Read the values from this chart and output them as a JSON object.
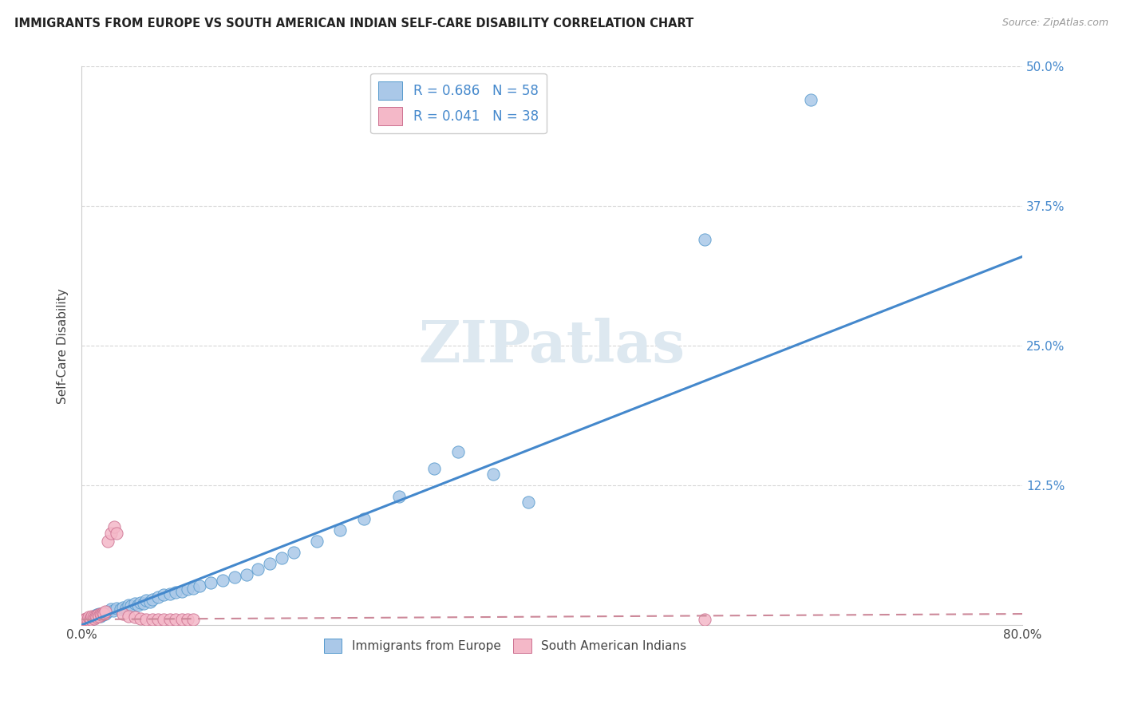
{
  "title": "IMMIGRANTS FROM EUROPE VS SOUTH AMERICAN INDIAN SELF-CARE DISABILITY CORRELATION CHART",
  "source": "Source: ZipAtlas.com",
  "ylabel_label": "Self-Care Disability",
  "legend_r1": "R = 0.686",
  "legend_n1": "N = 58",
  "legend_r2": "R = 0.041",
  "legend_n2": "N = 38",
  "label_blue": "Immigrants from Europe",
  "label_pink": "South American Indians",
  "blue_color": "#aac8e8",
  "blue_edge": "#5599cc",
  "pink_color": "#f4b8c8",
  "pink_edge": "#cc7090",
  "line_blue": "#4488cc",
  "line_pink": "#cc8899",
  "watermark_color": "#dde8f0",
  "blue_x": [
    0.002,
    0.004,
    0.005,
    0.007,
    0.008,
    0.009,
    0.01,
    0.011,
    0.012,
    0.013,
    0.015,
    0.016,
    0.017,
    0.018,
    0.019,
    0.02,
    0.022,
    0.025,
    0.027,
    0.03,
    0.033,
    0.035,
    0.038,
    0.04,
    0.042,
    0.045,
    0.048,
    0.05,
    0.053,
    0.055,
    0.058,
    0.06,
    0.065,
    0.07,
    0.075,
    0.08,
    0.085,
    0.09,
    0.095,
    0.1,
    0.11,
    0.12,
    0.13,
    0.14,
    0.15,
    0.16,
    0.17,
    0.18,
    0.2,
    0.22,
    0.24,
    0.27,
    0.3,
    0.32,
    0.35,
    0.38,
    0.53,
    0.62
  ],
  "blue_y": [
    0.003,
    0.005,
    0.004,
    0.006,
    0.005,
    0.007,
    0.006,
    0.008,
    0.007,
    0.009,
    0.01,
    0.008,
    0.01,
    0.009,
    0.011,
    0.01,
    0.012,
    0.014,
    0.013,
    0.015,
    0.014,
    0.016,
    0.015,
    0.018,
    0.017,
    0.019,
    0.018,
    0.02,
    0.019,
    0.022,
    0.021,
    0.023,
    0.025,
    0.027,
    0.028,
    0.029,
    0.03,
    0.032,
    0.033,
    0.035,
    0.038,
    0.04,
    0.043,
    0.045,
    0.05,
    0.055,
    0.06,
    0.065,
    0.075,
    0.085,
    0.095,
    0.115,
    0.14,
    0.155,
    0.135,
    0.11,
    0.345,
    0.47
  ],
  "pink_x": [
    0.001,
    0.002,
    0.003,
    0.004,
    0.005,
    0.006,
    0.007,
    0.008,
    0.009,
    0.01,
    0.011,
    0.012,
    0.013,
    0.014,
    0.015,
    0.016,
    0.017,
    0.018,
    0.019,
    0.02,
    0.022,
    0.025,
    0.028,
    0.03,
    0.035,
    0.04,
    0.045,
    0.05,
    0.055,
    0.06,
    0.065,
    0.07,
    0.075,
    0.08,
    0.085,
    0.09,
    0.095,
    0.53
  ],
  "pink_y": [
    0.004,
    0.005,
    0.005,
    0.006,
    0.005,
    0.007,
    0.006,
    0.005,
    0.008,
    0.007,
    0.006,
    0.008,
    0.007,
    0.009,
    0.008,
    0.01,
    0.009,
    0.011,
    0.01,
    0.012,
    0.075,
    0.082,
    0.088,
    0.082,
    0.01,
    0.008,
    0.007,
    0.006,
    0.005,
    0.005,
    0.005,
    0.005,
    0.005,
    0.005,
    0.005,
    0.005,
    0.005,
    0.005
  ],
  "blue_line_x": [
    0.0,
    0.8
  ],
  "blue_line_y": [
    0.0,
    0.33
  ],
  "pink_line_x": [
    0.0,
    0.8
  ],
  "pink_line_y": [
    0.005,
    0.01
  ],
  "xlim": [
    0.0,
    0.8
  ],
  "ylim": [
    0.0,
    0.5
  ],
  "yticks": [
    0.125,
    0.25,
    0.375,
    0.5
  ],
  "ytick_labels": [
    "12.5%",
    "25.0%",
    "37.5%",
    "50.0%"
  ],
  "xticks": [
    0.0,
    0.8
  ],
  "xtick_labels": [
    "0.0%",
    "80.0%"
  ]
}
